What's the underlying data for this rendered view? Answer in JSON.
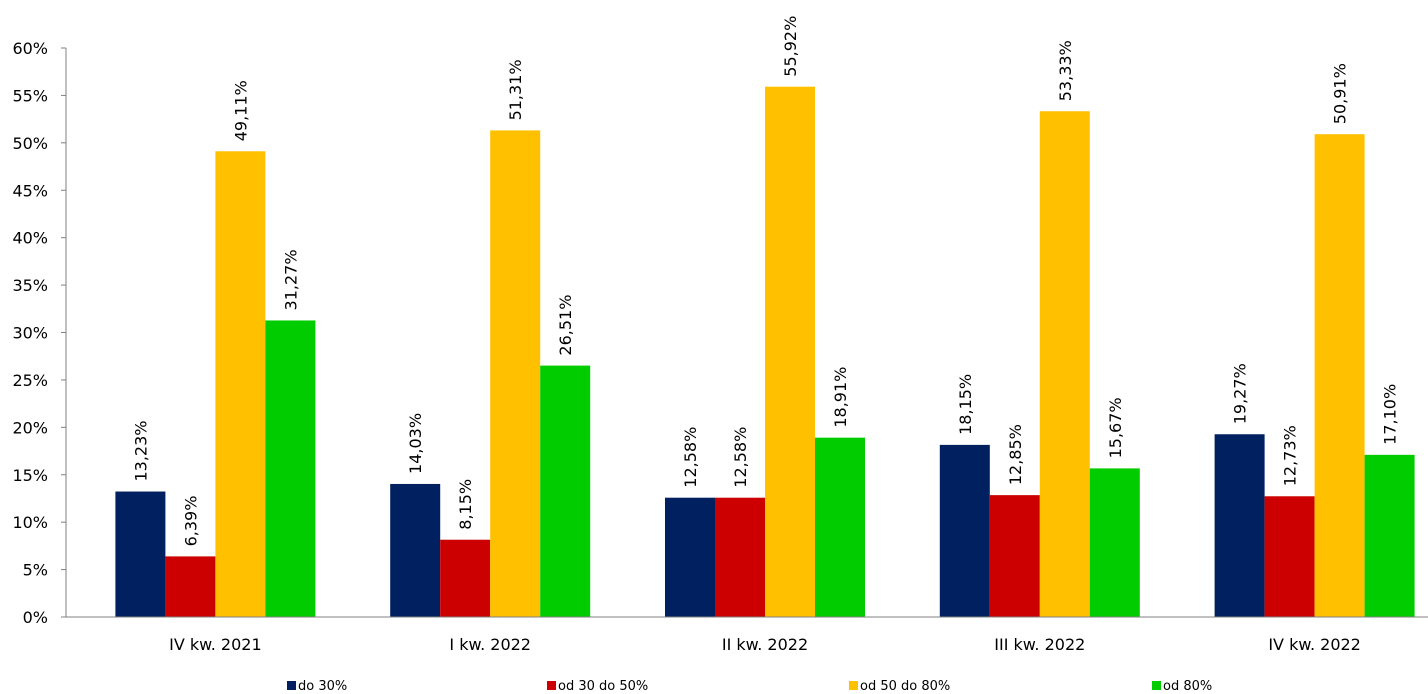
{
  "chart_data": {
    "type": "bar",
    "title": "",
    "xlabel": "",
    "ylabel": "",
    "ylim": [
      0,
      60
    ],
    "y_ticks": [
      0,
      5,
      10,
      15,
      20,
      25,
      30,
      35,
      40,
      45,
      50,
      55,
      60
    ],
    "y_tick_labels": [
      "0%",
      "5%",
      "10%",
      "15%",
      "20%",
      "25%",
      "30%",
      "35%",
      "40%",
      "45%",
      "50%",
      "55%",
      "60%"
    ],
    "grid": false,
    "legend_position": "bottom",
    "categories": [
      "IV kw. 2021",
      "I kw. 2022",
      "II kw. 2022",
      "III kw. 2022",
      "IV kw. 2022"
    ],
    "series": [
      {
        "name": "do 30%",
        "color": "#002060",
        "values": [
          13.23,
          14.03,
          12.58,
          18.15,
          19.27
        ],
        "labels": [
          "13,23%",
          "14,03%",
          "12,58%",
          "18,15%",
          "19,27%"
        ]
      },
      {
        "name": "od 30 do 50%",
        "color": "#CC0000",
        "values": [
          6.39,
          8.15,
          12.58,
          12.85,
          12.73
        ],
        "labels": [
          "6,39%",
          "8,15%",
          "12,58%",
          "12,85%",
          "12,73%"
        ]
      },
      {
        "name": "od 50 do 80%",
        "color": "#FFC000",
        "values": [
          49.11,
          51.31,
          55.92,
          53.33,
          50.91
        ],
        "labels": [
          "49,11%",
          "51,31%",
          "55,92%",
          "53,33%",
          "50,91%"
        ]
      },
      {
        "name": "od 80%",
        "color": "#00CC00",
        "values": [
          31.27,
          26.51,
          18.91,
          15.67,
          17.1
        ],
        "labels": [
          "31,27%",
          "26,51%",
          "18,91%",
          "15,67%",
          "17,10%"
        ]
      }
    ]
  }
}
